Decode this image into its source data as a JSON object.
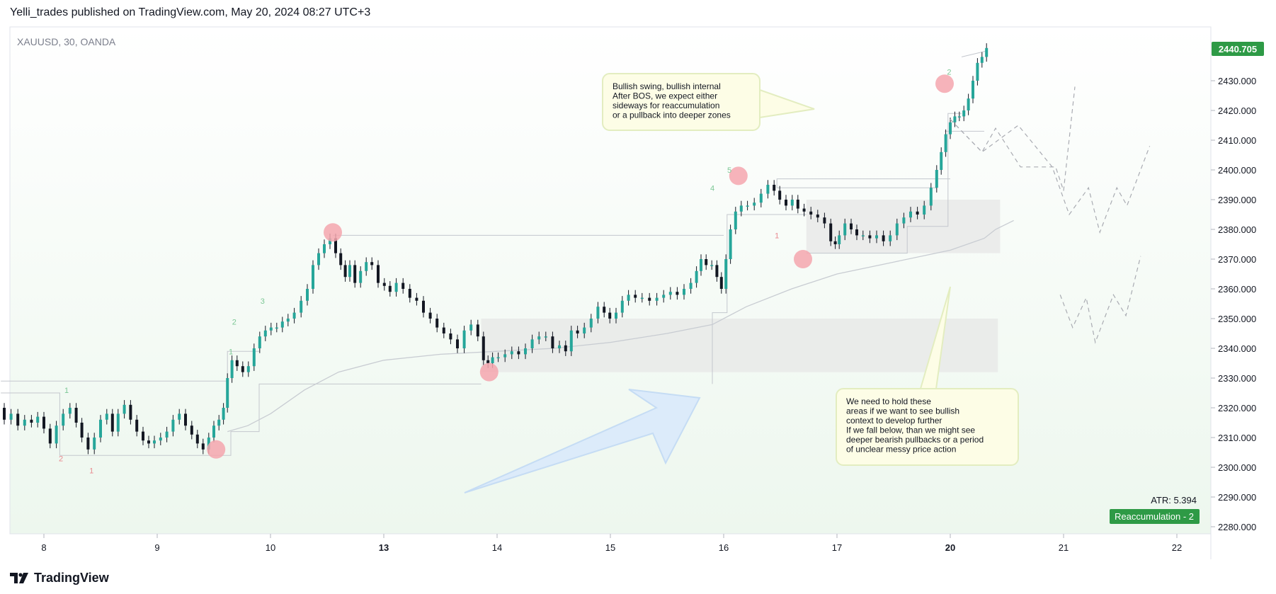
{
  "header": {
    "published": "Yelli_trades published on TradingView.com, May 20, 2024 08:27 UTC+3"
  },
  "symbol_label": "XAUUSD, 30, OANDA",
  "footer": {
    "brand": "TradingView"
  },
  "colors": {
    "bull": "#26a69a",
    "bear": "#131722",
    "pivot": "#f4a6ae",
    "price_badge": "#2e9a46",
    "note_bg": "#fdfde6",
    "note_border": "#e3edc0",
    "zone": "#e6e6e6",
    "arrow": "#d8e9fb"
  },
  "chart_data": {
    "type": "line",
    "title": "XAUUSD, 30, OANDA",
    "xlabel": "",
    "ylabel": "",
    "x_ticks": [
      {
        "label": "8",
        "day": 8,
        "bold": false
      },
      {
        "label": "9",
        "day": 9,
        "bold": false
      },
      {
        "label": "10",
        "day": 10,
        "bold": false
      },
      {
        "label": "13",
        "day": 11,
        "bold": true
      },
      {
        "label": "14",
        "day": 12,
        "bold": false
      },
      {
        "label": "15",
        "day": 13,
        "bold": false
      },
      {
        "label": "16",
        "day": 14,
        "bold": false
      },
      {
        "label": "17",
        "day": 15,
        "bold": false
      },
      {
        "label": "20",
        "day": 16,
        "bold": true
      },
      {
        "label": "21",
        "day": 17,
        "bold": false
      },
      {
        "label": "22",
        "day": 18,
        "bold": false
      }
    ],
    "y_ticks": [
      2280,
      2290,
      2300,
      2310,
      2320,
      2330,
      2340,
      2350,
      2360,
      2370,
      2380,
      2390,
      2400,
      2410,
      2420,
      2430
    ],
    "ylim": [
      2278,
      2443
    ],
    "last_price": "2440.705",
    "price_series": [
      [
        7.62,
        2320
      ],
      [
        7.68,
        2316
      ],
      [
        7.74,
        2318
      ],
      [
        7.8,
        2314
      ],
      [
        7.86,
        2316
      ],
      [
        7.92,
        2315
      ],
      [
        7.97,
        2317
      ],
      [
        8.03,
        2313
      ],
      [
        8.08,
        2308
      ],
      [
        8.14,
        2314
      ],
      [
        8.2,
        2318
      ],
      [
        8.26,
        2320
      ],
      [
        8.31,
        2315
      ],
      [
        8.36,
        2310
      ],
      [
        8.42,
        2306
      ],
      [
        8.47,
        2310
      ],
      [
        8.53,
        2316
      ],
      [
        8.58,
        2318
      ],
      [
        8.63,
        2312
      ],
      [
        8.68,
        2318
      ],
      [
        8.74,
        2321
      ],
      [
        8.79,
        2316
      ],
      [
        8.85,
        2312
      ],
      [
        8.9,
        2309
      ],
      [
        8.95,
        2308
      ],
      [
        9.0,
        2309
      ],
      [
        9.06,
        2310
      ],
      [
        9.11,
        2312
      ],
      [
        9.17,
        2316
      ],
      [
        9.22,
        2318
      ],
      [
        9.28,
        2314
      ],
      [
        9.33,
        2311
      ],
      [
        9.38,
        2308
      ],
      [
        9.43,
        2306
      ],
      [
        9.48,
        2310
      ],
      [
        9.52,
        2314
      ],
      [
        9.57,
        2316
      ],
      [
        9.6,
        2320
      ],
      [
        9.64,
        2330
      ],
      [
        9.68,
        2336
      ],
      [
        9.73,
        2334
      ],
      [
        9.78,
        2332
      ],
      [
        9.83,
        2334
      ],
      [
        9.88,
        2340
      ],
      [
        9.93,
        2344
      ],
      [
        9.98,
        2346
      ],
      [
        10.03,
        2347
      ],
      [
        10.08,
        2347
      ],
      [
        10.13,
        2349
      ],
      [
        10.18,
        2350
      ],
      [
        10.24,
        2352
      ],
      [
        10.3,
        2356
      ],
      [
        10.35,
        2360
      ],
      [
        10.4,
        2368
      ],
      [
        10.45,
        2372
      ],
      [
        10.5,
        2375
      ],
      [
        10.55,
        2377
      ],
      [
        10.6,
        2372
      ],
      [
        10.64,
        2368
      ],
      [
        10.68,
        2364
      ],
      [
        10.72,
        2368
      ],
      [
        10.77,
        2362
      ],
      [
        10.82,
        2366
      ],
      [
        10.87,
        2369
      ],
      [
        10.92,
        2368
      ],
      [
        10.98,
        2362
      ],
      [
        11.03,
        2361
      ],
      [
        11.08,
        2359
      ],
      [
        11.14,
        2362
      ],
      [
        11.2,
        2360
      ],
      [
        11.26,
        2357
      ],
      [
        11.32,
        2356
      ],
      [
        11.38,
        2352
      ],
      [
        11.44,
        2350
      ],
      [
        11.5,
        2347
      ],
      [
        11.56,
        2345
      ],
      [
        11.62,
        2343
      ],
      [
        11.68,
        2340
      ],
      [
        11.74,
        2346
      ],
      [
        11.8,
        2348
      ],
      [
        11.86,
        2344
      ],
      [
        11.9,
        2336
      ],
      [
        11.94,
        2335
      ],
      [
        11.98,
        2337
      ],
      [
        12.04,
        2337
      ],
      [
        12.1,
        2338
      ],
      [
        12.16,
        2339
      ],
      [
        12.22,
        2338
      ],
      [
        12.28,
        2340
      ],
      [
        12.34,
        2343
      ],
      [
        12.4,
        2344
      ],
      [
        12.46,
        2344
      ],
      [
        12.52,
        2340
      ],
      [
        12.58,
        2341
      ],
      [
        12.63,
        2339
      ],
      [
        12.68,
        2346
      ],
      [
        12.74,
        2345
      ],
      [
        12.8,
        2347
      ],
      [
        12.86,
        2350
      ],
      [
        12.92,
        2354
      ],
      [
        12.97,
        2352
      ],
      [
        13.02,
        2350
      ],
      [
        13.08,
        2352
      ],
      [
        13.13,
        2356
      ],
      [
        13.19,
        2358
      ],
      [
        13.25,
        2357
      ],
      [
        13.31,
        2357
      ],
      [
        13.38,
        2356
      ],
      [
        13.44,
        2357
      ],
      [
        13.5,
        2358
      ],
      [
        13.56,
        2359
      ],
      [
        13.62,
        2358
      ],
      [
        13.68,
        2360
      ],
      [
        13.74,
        2362
      ],
      [
        13.78,
        2366
      ],
      [
        13.82,
        2370
      ],
      [
        13.87,
        2368
      ],
      [
        13.92,
        2368
      ],
      [
        13.96,
        2364
      ],
      [
        14.0,
        2360
      ],
      [
        14.04,
        2370
      ],
      [
        14.08,
        2380
      ],
      [
        14.13,
        2386
      ],
      [
        14.18,
        2388
      ],
      [
        14.24,
        2388
      ],
      [
        14.3,
        2389
      ],
      [
        14.36,
        2392
      ],
      [
        14.42,
        2395
      ],
      [
        14.47,
        2393
      ],
      [
        14.52,
        2390
      ],
      [
        14.58,
        2388
      ],
      [
        14.63,
        2390
      ],
      [
        14.68,
        2387
      ],
      [
        14.74,
        2386
      ],
      [
        14.8,
        2385
      ],
      [
        14.86,
        2384
      ],
      [
        14.92,
        2382
      ],
      [
        14.97,
        2376
      ],
      [
        15.0,
        2375
      ],
      [
        15.04,
        2378
      ],
      [
        15.1,
        2382
      ],
      [
        15.15,
        2380
      ],
      [
        15.2,
        2378
      ],
      [
        15.26,
        2378
      ],
      [
        15.32,
        2377
      ],
      [
        15.38,
        2378
      ],
      [
        15.44,
        2376
      ],
      [
        15.5,
        2378
      ],
      [
        15.56,
        2382
      ],
      [
        15.62,
        2384
      ],
      [
        15.68,
        2386
      ],
      [
        15.74,
        2385
      ],
      [
        15.8,
        2388
      ],
      [
        15.86,
        2394
      ],
      [
        15.9,
        2400
      ],
      [
        15.94,
        2406
      ],
      [
        15.98,
        2412
      ],
      [
        16.02,
        2416
      ],
      [
        16.06,
        2418
      ],
      [
        16.1,
        2418
      ],
      [
        16.14,
        2420
      ],
      [
        16.18,
        2424
      ],
      [
        16.22,
        2430
      ],
      [
        16.26,
        2436
      ],
      [
        16.3,
        2438
      ],
      [
        16.34,
        2441
      ]
    ],
    "moving_average": [
      [
        9.62,
        2312
      ],
      [
        9.8,
        2314
      ],
      [
        10.0,
        2318
      ],
      [
        10.3,
        2326
      ],
      [
        10.6,
        2332
      ],
      [
        11.0,
        2336
      ],
      [
        11.5,
        2338
      ],
      [
        12.0,
        2339
      ],
      [
        12.5,
        2340
      ],
      [
        13.0,
        2342
      ],
      [
        13.5,
        2345
      ],
      [
        13.9,
        2348
      ],
      [
        14.2,
        2354
      ],
      [
        14.6,
        2360
      ],
      [
        15.0,
        2365
      ],
      [
        15.5,
        2369
      ],
      [
        16.0,
        2373
      ],
      [
        16.3,
        2377
      ],
      [
        16.4,
        2380
      ],
      [
        16.56,
        2383
      ]
    ],
    "pivots": [
      [
        9.52,
        2306
      ],
      [
        10.55,
        2379
      ],
      [
        11.93,
        2332
      ],
      [
        14.13,
        2398
      ],
      [
        14.7,
        2370
      ],
      [
        15.95,
        2429
      ]
    ],
    "swing_labels": [
      {
        "text": "1",
        "day": 8.2,
        "price": 2325,
        "kind": "high"
      },
      {
        "text": "2",
        "day": 8.15,
        "price": 2302,
        "kind": "low"
      },
      {
        "text": "1",
        "day": 8.42,
        "price": 2298,
        "kind": "low"
      },
      {
        "text": "1",
        "day": 9.65,
        "price": 2338,
        "kind": "high"
      },
      {
        "text": "2",
        "day": 9.68,
        "price": 2348,
        "kind": "high"
      },
      {
        "text": "3",
        "day": 9.93,
        "price": 2355,
        "kind": "high"
      },
      {
        "text": "4",
        "day": 13.9,
        "price": 2393,
        "kind": "high"
      },
      {
        "text": "5",
        "day": 14.05,
        "price": 2399,
        "kind": "high"
      },
      {
        "text": "1",
        "day": 14.47,
        "price": 2377,
        "kind": "low"
      },
      {
        "text": "2",
        "day": 15.99,
        "price": 2432,
        "kind": "high"
      }
    ],
    "zones": [
      {
        "day_from": 11.86,
        "day_to": 16.42,
        "price_from": 2332,
        "price_to": 2350
      },
      {
        "day_from": 14.73,
        "day_to": 16.44,
        "price_from": 2372,
        "price_to": 2390
      }
    ],
    "projections": [
      [
        [
          16.0,
          2417
        ],
        [
          16.28,
          2406
        ],
        [
          16.6,
          2415
        ],
        [
          16.9,
          2401
        ],
        [
          17.05,
          2385
        ],
        [
          17.22,
          2394
        ],
        [
          17.32,
          2379
        ],
        [
          17.47,
          2394
        ],
        [
          17.56,
          2388
        ],
        [
          17.76,
          2408
        ]
      ],
      [
        [
          16.0,
          2417
        ],
        [
          16.28,
          2406
        ],
        [
          16.4,
          2414
        ],
        [
          16.62,
          2401
        ],
        [
          16.93,
          2401
        ],
        [
          17.0,
          2393
        ],
        [
          17.1,
          2428
        ]
      ],
      [
        [
          16.97,
          2358
        ],
        [
          17.08,
          2347
        ],
        [
          17.2,
          2357
        ],
        [
          17.28,
          2342
        ],
        [
          17.44,
          2358
        ],
        [
          17.55,
          2351
        ],
        [
          17.68,
          2371
        ]
      ]
    ],
    "notes": [
      {
        "lines": [
          "Bullish swing, bullish internal",
          "After BOS, we expect either",
          "sideways for reaccumulation",
          "or a pullback into deeper zones"
        ]
      },
      {
        "lines": [
          "We need to hold these",
          "areas if we want to see bullish",
          "context to develop further",
          "If we fall below, than we might see",
          "deeper bearish pullbacks or a period",
          "of unclear messy price action"
        ]
      }
    ],
    "atr_label": "ATR: 5.394",
    "indicator_badge": "Reaccumulation - 2"
  }
}
